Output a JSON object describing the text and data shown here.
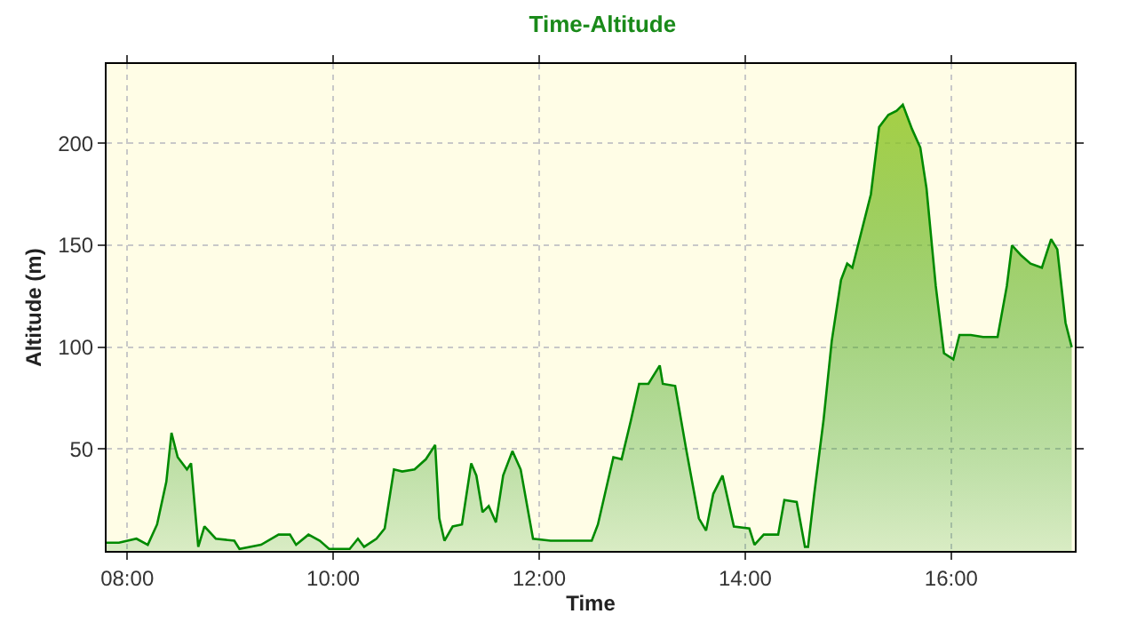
{
  "chart_data": {
    "type": "area",
    "title": "Time-Altitude",
    "xlabel": "Time",
    "ylabel": "Altitude (m)",
    "xlim": [
      7.8,
      17.2
    ],
    "ylim": [
      0,
      239
    ],
    "xticks": [
      {
        "value": 8,
        "label": "08:00"
      },
      {
        "value": 10,
        "label": "10:00"
      },
      {
        "value": 12,
        "label": "12:00"
      },
      {
        "value": 14,
        "label": "14:00"
      },
      {
        "value": 16,
        "label": "16:00"
      }
    ],
    "yticks": [
      50,
      100,
      150,
      200
    ],
    "grid": true,
    "series": [
      {
        "color": "#008a00",
        "x": [
          7.8,
          7.92,
          8.09,
          8.2,
          8.29,
          8.38,
          8.43,
          8.49,
          8.58,
          8.62,
          8.69,
          8.75,
          8.86,
          9.04,
          9.09,
          9.3,
          9.47,
          9.58,
          9.64,
          9.76,
          9.87,
          9.96,
          10.16,
          10.24,
          10.3,
          10.42,
          10.5,
          10.59,
          10.67,
          10.79,
          10.9,
          10.99,
          11.03,
          11.08,
          11.16,
          11.25,
          11.34,
          11.39,
          11.45,
          11.51,
          11.58,
          11.65,
          11.74,
          11.82,
          11.94,
          12.11,
          12.28,
          12.51,
          12.57,
          12.72,
          12.8,
          12.89,
          12.97,
          13.06,
          13.17,
          13.2,
          13.32,
          13.43,
          13.55,
          13.62,
          13.69,
          13.78,
          13.89,
          14.04,
          14.09,
          14.18,
          14.32,
          14.38,
          14.5,
          14.58,
          14.61,
          14.67,
          14.76,
          14.84,
          14.93,
          14.99,
          15.04,
          15.13,
          15.22,
          15.3,
          15.39,
          15.47,
          15.53,
          15.62,
          15.7,
          15.76,
          15.85,
          15.93,
          16.02,
          16.08,
          16.19,
          16.31,
          16.45,
          16.54,
          16.59,
          16.68,
          16.77,
          16.88,
          16.97,
          17.03,
          17.11,
          17.17
        ],
        "values": [
          4,
          4,
          6,
          3,
          13,
          34,
          58,
          46,
          40,
          43,
          2,
          12,
          6,
          5,
          1,
          3,
          8,
          8,
          3,
          8,
          5,
          1,
          1,
          6,
          2,
          6,
          11,
          40,
          39,
          40,
          45,
          52,
          16,
          5,
          12,
          13,
          43,
          37,
          19,
          22,
          14,
          37,
          49,
          40,
          6,
          5,
          5,
          5,
          13,
          46,
          45,
          64,
          82,
          82,
          91,
          82,
          81,
          49,
          16,
          10,
          28,
          37,
          12,
          11,
          3,
          8,
          8,
          25,
          24,
          2,
          2,
          28,
          64,
          103,
          133,
          141,
          139,
          157,
          175,
          208,
          214,
          216,
          219,
          207,
          198,
          178,
          130,
          97,
          94,
          106,
          106,
          105,
          105,
          130,
          150,
          145,
          141,
          139,
          153,
          148,
          112,
          100
        ]
      }
    ]
  }
}
